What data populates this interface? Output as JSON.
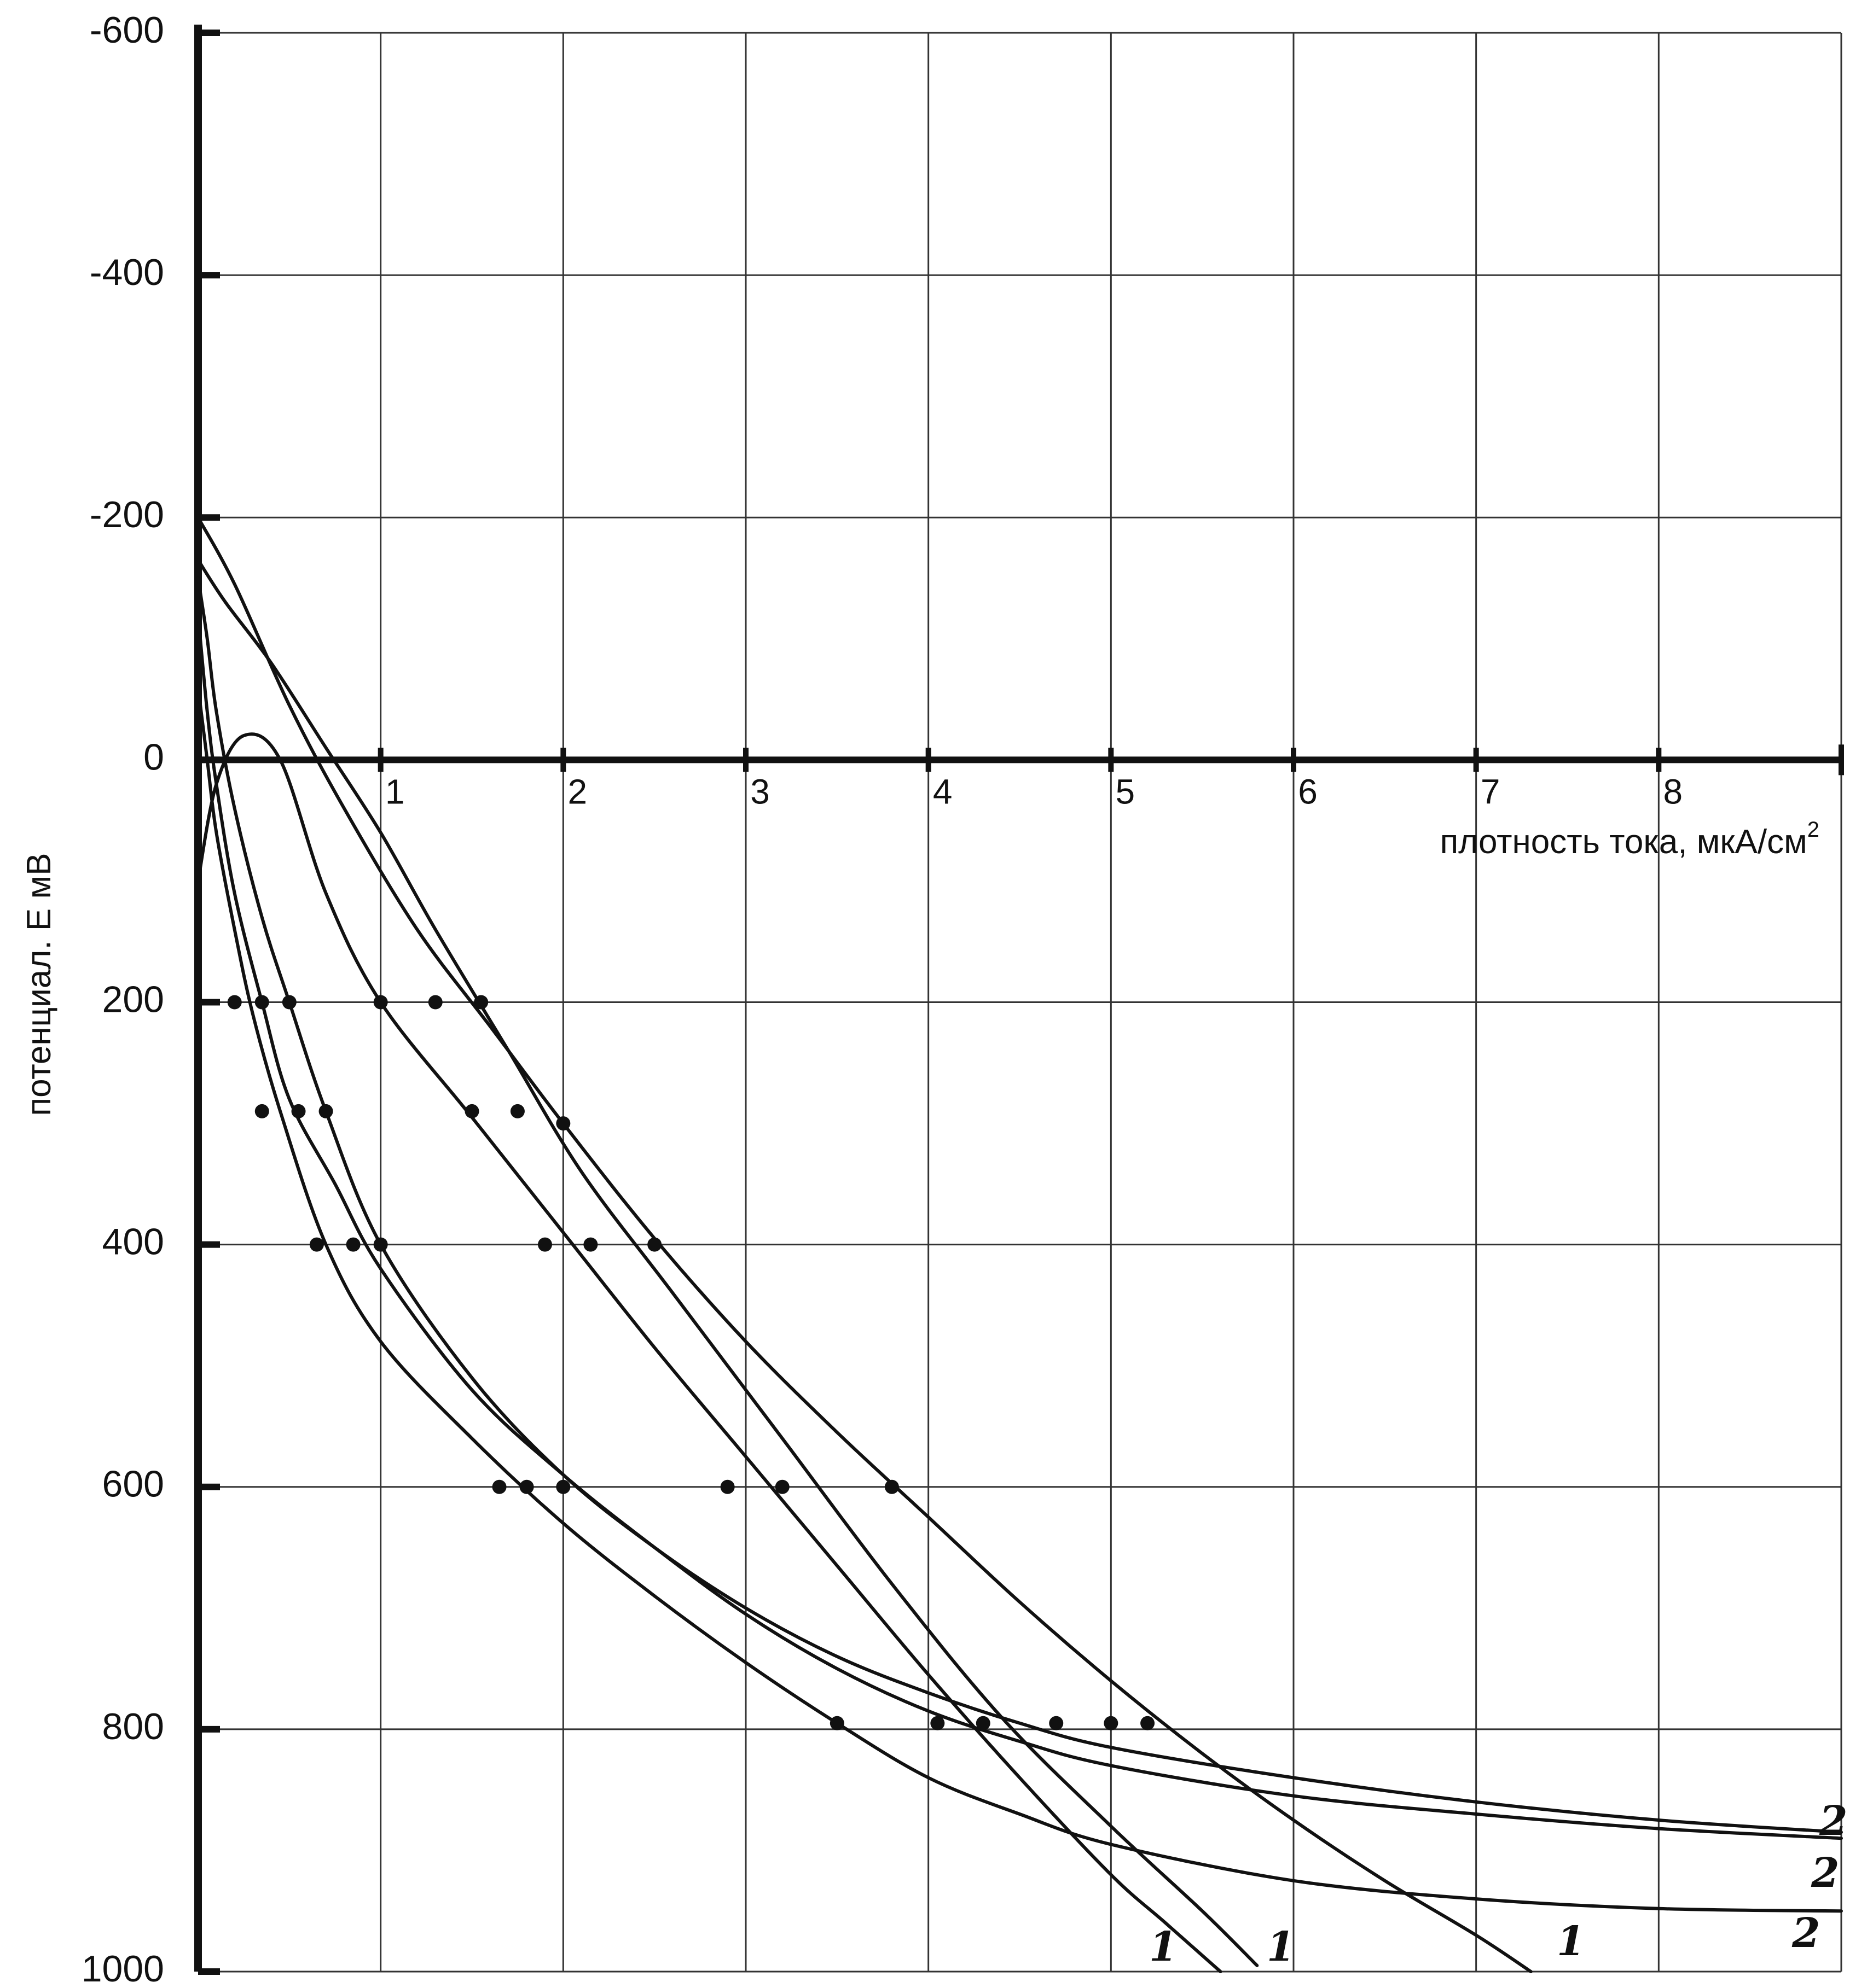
{
  "chart_data": {
    "type": "line",
    "title": "",
    "xlabel": "плотность тока, мкА/см",
    "xlabel_superscript": "2",
    "ylabel": "потенциал. Е мВ",
    "xlim": [
      0,
      9
    ],
    "ylim": [
      -600,
      1000
    ],
    "y_inverted": true,
    "grid": true,
    "legend": "none",
    "x_ticks": [
      {
        "value": 1,
        "label": "1"
      },
      {
        "value": 2,
        "label": "2"
      },
      {
        "value": 3,
        "label": "3"
      },
      {
        "value": 4,
        "label": "4"
      },
      {
        "value": 5,
        "label": "5"
      },
      {
        "value": 6,
        "label": "6"
      },
      {
        "value": 7,
        "label": "7"
      },
      {
        "value": 8,
        "label": "8"
      }
    ],
    "y_ticks": [
      {
        "value": -600,
        "label": "-600"
      },
      {
        "value": -400,
        "label": "-400"
      },
      {
        "value": -200,
        "label": "-200"
      },
      {
        "value": 0,
        "label": "0"
      },
      {
        "value": 200,
        "label": "200"
      },
      {
        "value": 400,
        "label": "400"
      },
      {
        "value": 600,
        "label": "600"
      },
      {
        "value": 800,
        "label": "800"
      },
      {
        "value": 1000,
        "label": "1000"
      }
    ],
    "series": [
      {
        "label": "1",
        "x": [
          0.0,
          0.1,
          0.25,
          0.45,
          0.7,
          1.0,
          1.5,
          2.0,
          2.5,
          3.0,
          3.5,
          4.0,
          4.5,
          5.0,
          5.3,
          5.6
        ],
        "y": [
          100,
          20,
          -20,
          0,
          110,
          200,
          295,
          390,
          485,
          575,
          665,
          755,
          840,
          920,
          960,
          1000
        ],
        "points": [
          [
            1.0,
            200
          ],
          [
            1.5,
            290
          ],
          [
            1.9,
            400
          ],
          [
            2.9,
            600
          ],
          [
            4.3,
            795
          ]
        ]
      },
      {
        "label": "1",
        "x": [
          0.0,
          0.15,
          0.4,
          0.7,
          1.0,
          1.3,
          1.7,
          2.1,
          2.6,
          3.2,
          3.8,
          4.4,
          5.0,
          5.5,
          5.8
        ],
        "y": [
          -165,
          -130,
          -80,
          -10,
          60,
          140,
          240,
          340,
          440,
          560,
          680,
          790,
          880,
          950,
          995
        ],
        "points": [
          [
            1.3,
            200
          ],
          [
            1.75,
            290
          ],
          [
            2.15,
            400
          ],
          [
            3.2,
            600
          ],
          [
            4.05,
            795
          ]
        ]
      },
      {
        "label": "1",
        "x": [
          0.0,
          0.2,
          0.5,
          0.8,
          1.2,
          1.6,
          2.0,
          2.5,
          3.0,
          3.5,
          4.0,
          4.5,
          5.0,
          5.5,
          6.0,
          6.5,
          7.0,
          7.3
        ],
        "y": [
          -200,
          -145,
          -45,
          40,
          140,
          220,
          300,
          395,
          480,
          555,
          625,
          695,
          760,
          820,
          875,
          925,
          970,
          1000
        ],
        "points": [
          [
            1.55,
            200
          ],
          [
            2.0,
            300
          ],
          [
            2.5,
            400
          ],
          [
            3.8,
            600
          ],
          [
            5.2,
            795
          ]
        ]
      },
      {
        "label": "2",
        "x": [
          0.0,
          0.05,
          0.1,
          0.2,
          0.3,
          0.45,
          0.7,
          1.0,
          1.5,
          2.0,
          2.5,
          3.0,
          3.5,
          4.0,
          4.5,
          5.0,
          6.0,
          7.0,
          8.0,
          9.0
        ],
        "y": [
          -60,
          0,
          60,
          140,
          210,
          290,
          400,
          480,
          560,
          630,
          690,
          745,
          795,
          840,
          870,
          895,
          925,
          940,
          948,
          950
        ],
        "points": [
          [
            0.2,
            200
          ],
          [
            0.35,
            290
          ],
          [
            0.65,
            400
          ],
          [
            1.65,
            600
          ],
          [
            3.5,
            795
          ]
        ]
      },
      {
        "label": "2",
        "x": [
          0.0,
          0.05,
          0.1,
          0.2,
          0.35,
          0.5,
          0.75,
          1.0,
          1.5,
          2.0,
          2.5,
          3.0,
          3.5,
          4.0,
          4.5,
          5.0,
          6.0,
          7.0,
          8.0,
          9.0
        ],
        "y": [
          -120,
          -40,
          20,
          110,
          200,
          280,
          350,
          420,
          520,
          590,
          650,
          705,
          750,
          785,
          810,
          830,
          855,
          870,
          882,
          890
        ],
        "points": [
          [
            0.35,
            200
          ],
          [
            0.55,
            290
          ],
          [
            0.85,
            400
          ],
          [
            1.8,
            600
          ],
          [
            4.7,
            795
          ]
        ]
      },
      {
        "label": "2",
        "x": [
          0.0,
          0.05,
          0.1,
          0.2,
          0.35,
          0.5,
          0.7,
          1.0,
          1.5,
          2.0,
          2.5,
          3.0,
          3.5,
          4.0,
          4.5,
          5.0,
          6.0,
          7.0,
          8.0,
          9.0
        ],
        "y": [
          -150,
          -100,
          -40,
          40,
          130,
          200,
          290,
          400,
          510,
          590,
          650,
          700,
          740,
          770,
          795,
          815,
          840,
          860,
          875,
          885
        ],
        "points": [
          [
            0.5,
            200
          ],
          [
            0.7,
            290
          ],
          [
            1.0,
            400
          ],
          [
            2.0,
            600
          ],
          [
            5.0,
            795
          ]
        ]
      }
    ]
  }
}
